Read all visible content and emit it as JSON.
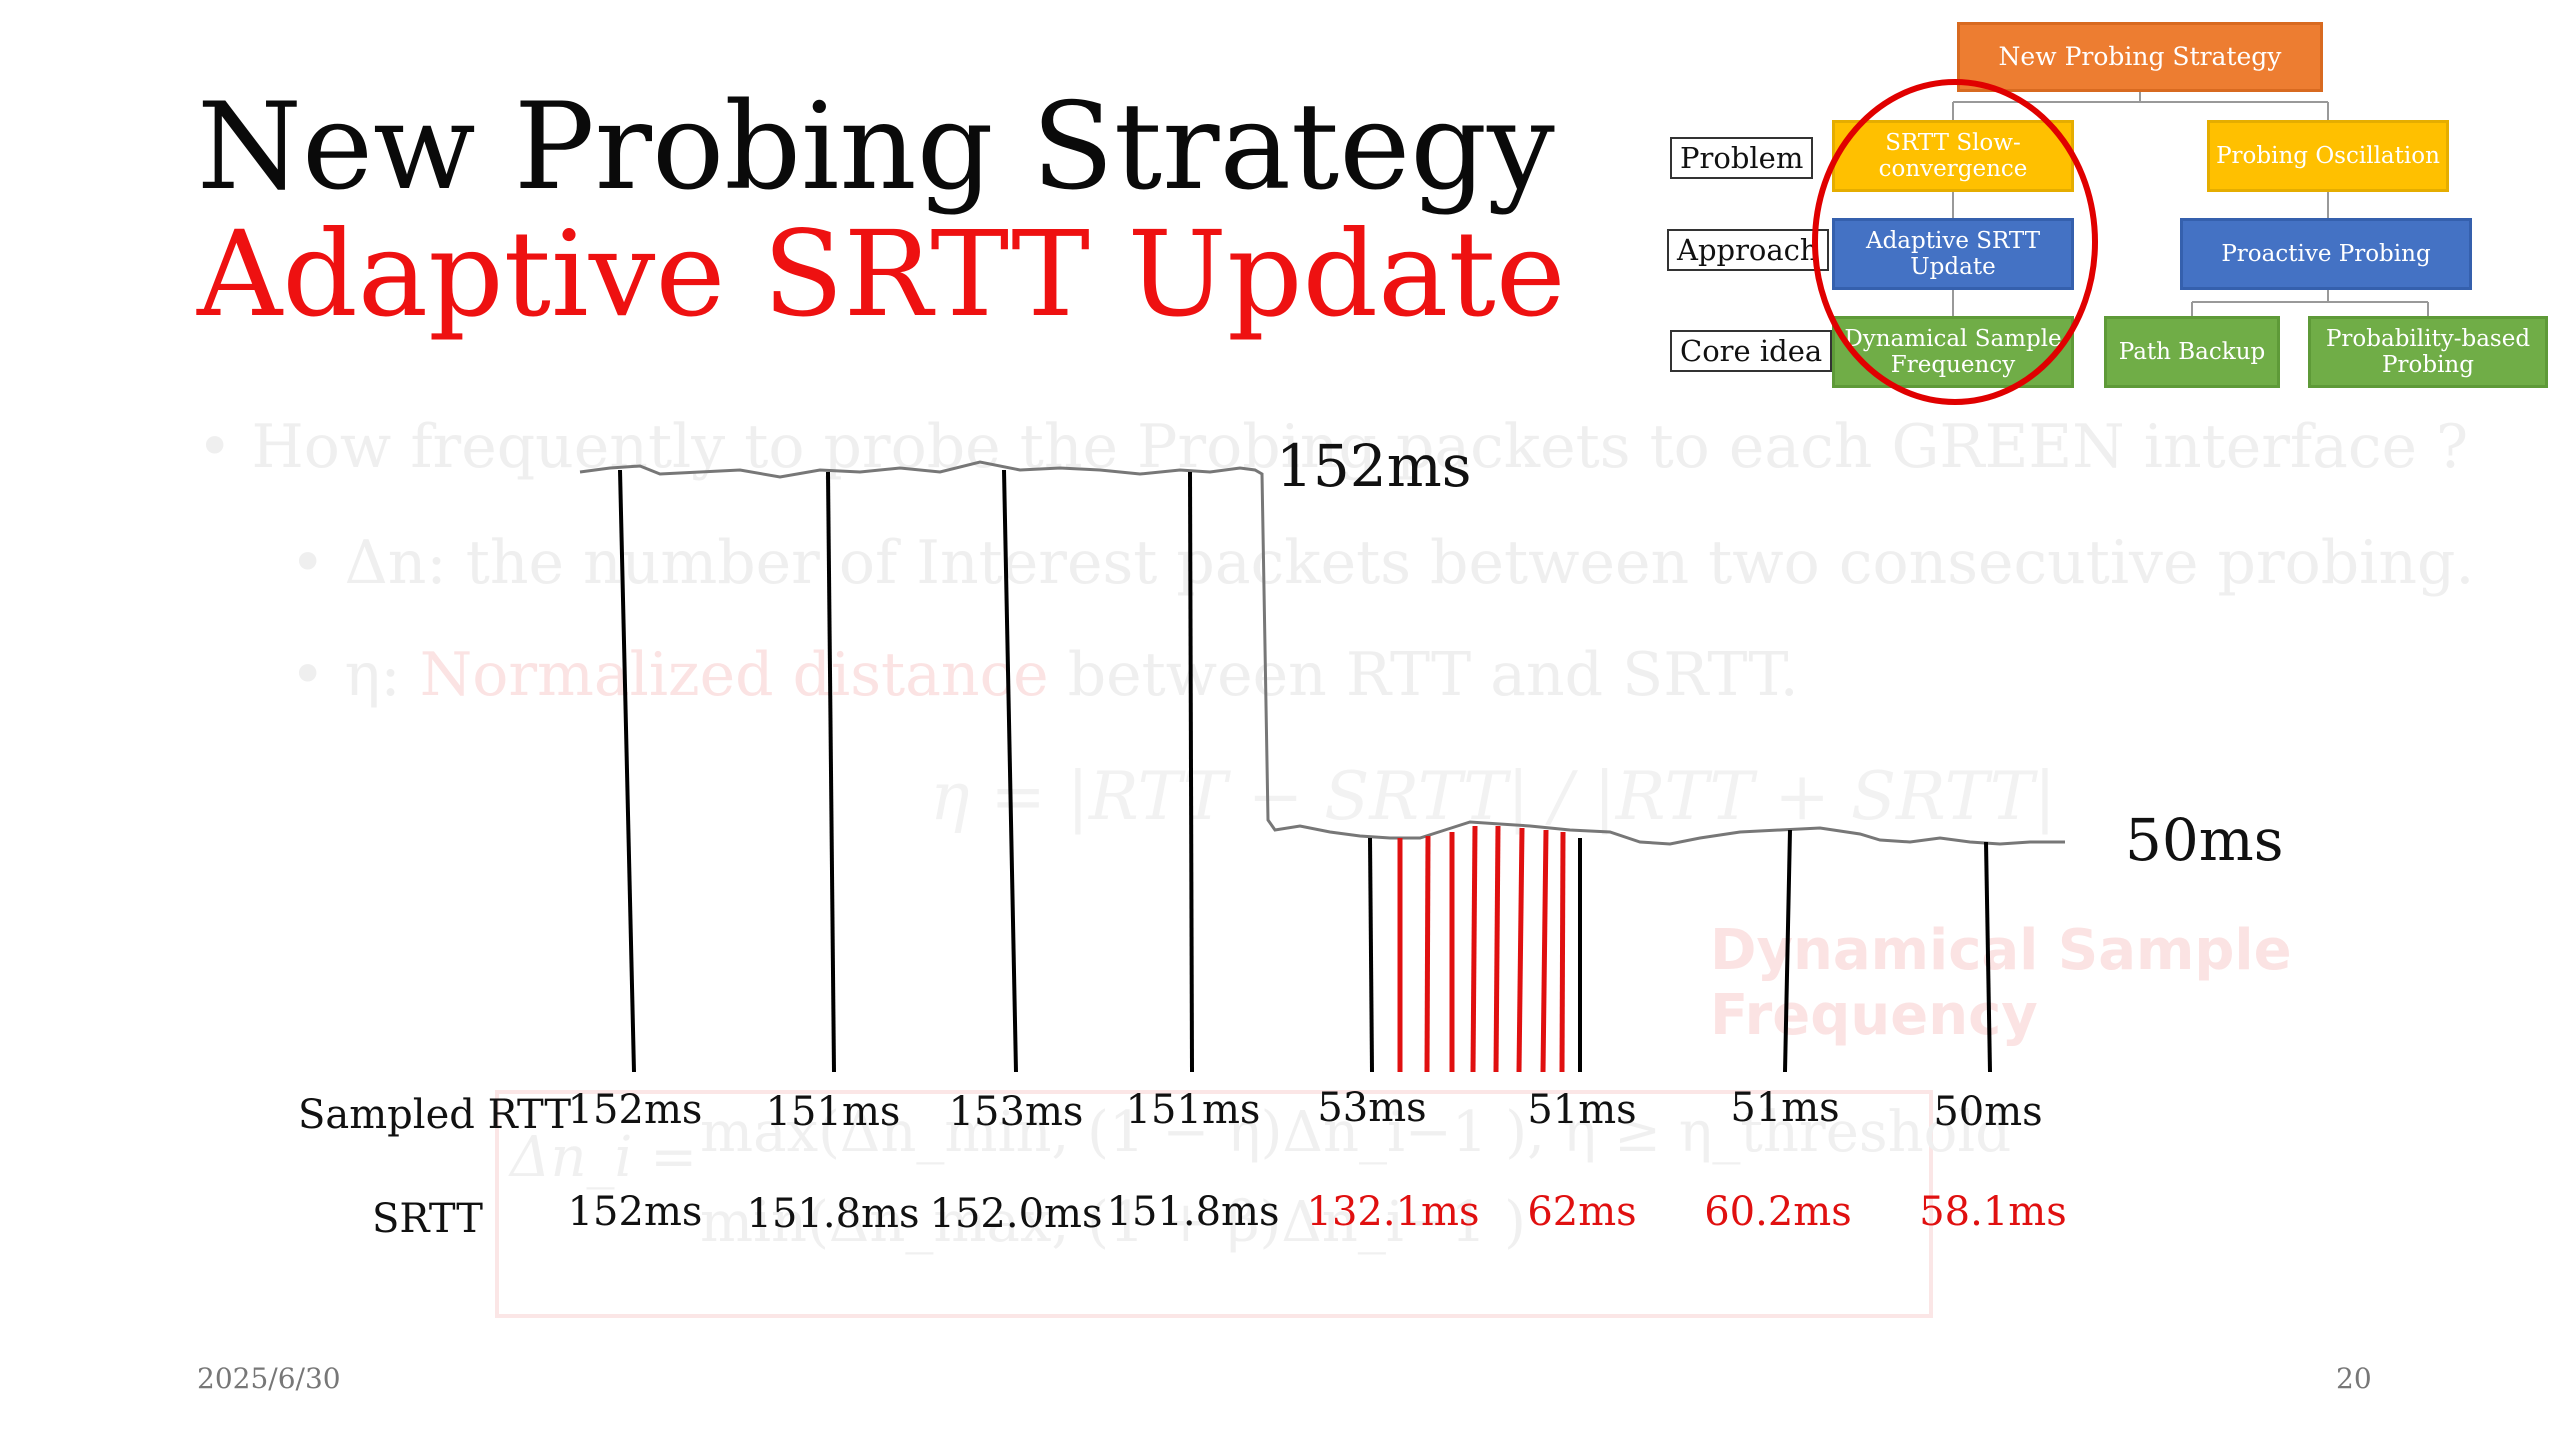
{
  "title": "New Probing Strategy",
  "subtitle": "Adaptive SRTT Update",
  "background_text": {
    "bullet1": "• How frequently to probe the Probing packets to each GREEN interface ?",
    "bullet2": "• Δn: the number of Interest packets between two consecutive probing.",
    "bullet3_prefix": "• η: ",
    "bullet3_red": "Normalized distance",
    "bullet3_rest": " between RTT and SRTT.",
    "equation": "η = |RTT − SRTT| / |RTT + SRTT|",
    "tag": "Dynamical Sample Frequency",
    "formula_lhs": "Δn_i =",
    "formula_line1": "max(Δn_min, (1 − η)Δn_i−1 ), η ≥ η_threshold",
    "formula_line2": "min(Δn_max, (1 + β)Δn_i−1 )"
  },
  "chart": {
    "label_top": "152ms",
    "label_bottom": "50ms",
    "row1_label": "Sampled RTT",
    "row2_label": "SRTT",
    "samples": [
      {
        "rtt": "152ms",
        "srtt": "152ms",
        "red": false
      },
      {
        "rtt": "151ms",
        "srtt": "151.8ms",
        "red": false
      },
      {
        "rtt": "153ms",
        "srtt": "152.0ms",
        "red": false
      },
      {
        "rtt": "151ms",
        "srtt": "151.8ms",
        "red": false
      },
      {
        "rtt": "53ms",
        "srtt": "132.1ms",
        "red": true
      },
      {
        "rtt": "51ms",
        "srtt": "62ms",
        "red": true
      },
      {
        "rtt": "51ms",
        "srtt": "60.2ms",
        "red": true
      },
      {
        "rtt": "50ms",
        "srtt": "58.1ms",
        "red": true
      }
    ],
    "colors": {
      "line": "#777777",
      "sample": "#000000",
      "highlight": "#e01010"
    }
  },
  "tree": {
    "root": "New Probing Strategy",
    "row_labels": {
      "problem": "Problem",
      "approach": "Approach",
      "core": "Core idea"
    },
    "problem_left": "SRTT Slow-convergence",
    "problem_right": "Probing Oscillation",
    "approach_left": "Adaptive SRTT Update",
    "approach_right": "Proactive Probing",
    "core_left": "Dynamical Sample Frequency",
    "core_mid": "Path Backup",
    "core_right": "Probability-based Probing",
    "highlight_color": "#e00000"
  },
  "footer": {
    "date": "2025/6/30",
    "page": "20"
  }
}
